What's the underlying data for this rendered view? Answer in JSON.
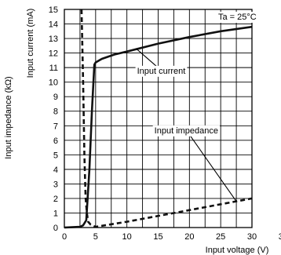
{
  "chart_data": {
    "type": "line",
    "xlabel": "Input voltage (V)",
    "ylabel_outer": "Input impedance (kΩ)",
    "ylabel_inner": "Input current (mA)",
    "xlim": [
      0,
      35
    ],
    "ylim": [
      0,
      15
    ],
    "x_ticks": [
      0,
      5,
      10,
      15,
      20,
      25,
      30,
      35
    ],
    "y_ticks": [
      0,
      1,
      2,
      3,
      4,
      5,
      6,
      7,
      8,
      9,
      10,
      11,
      12,
      13,
      14,
      15
    ],
    "x_grid_step": 2.5,
    "grid": true,
    "condition_label": "Ta = 25°C",
    "series": [
      {
        "name": "Input current",
        "style": "solid",
        "color": "#111111",
        "x": [
          0,
          2.5,
          3.0,
          3.5,
          4.0,
          4.4,
          4.8,
          5.0,
          6,
          8,
          10,
          15,
          20,
          25,
          30
        ],
        "y": [
          0,
          0.05,
          0.15,
          0.5,
          4.0,
          8.0,
          11.2,
          11.35,
          11.6,
          11.9,
          12.1,
          12.65,
          13.1,
          13.5,
          13.8
        ]
      },
      {
        "name": "Input impedance",
        "style": "dashed",
        "color": "#111111",
        "x": [
          2.75,
          3.0,
          3.2,
          3.4,
          3.6,
          3.8,
          4.2,
          5,
          10,
          15,
          20,
          25,
          30
        ],
        "y": [
          15,
          10,
          5,
          2,
          1,
          0.4,
          0.2,
          0.05,
          0.4,
          0.8,
          1.2,
          1.6,
          2.0
        ]
      }
    ],
    "annotations": [
      {
        "text": "Input current",
        "series": "Input current",
        "label_at": [
          15.5,
          10.8
        ],
        "points_to": [
          11.5,
          12.3
        ]
      },
      {
        "text": "Input impedance",
        "series": "Input impedance",
        "label_at": [
          19.5,
          6.7
        ],
        "points_to": [
          27.5,
          1.8
        ]
      }
    ]
  }
}
